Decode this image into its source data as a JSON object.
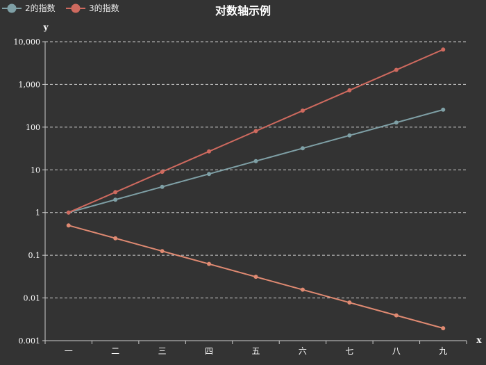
{
  "chart_data": {
    "type": "line",
    "title": "对数轴示例",
    "xlabel": "x",
    "ylabel": "y",
    "categories": [
      "一",
      "二",
      "三",
      "四",
      "五",
      "六",
      "七",
      "八",
      "九"
    ],
    "y_scale": "log",
    "ylim": [
      0.001,
      10000
    ],
    "y_ticks": [
      0.001,
      0.01,
      0.1,
      1,
      10,
      100,
      1000,
      10000
    ],
    "y_tick_labels": [
      "0.001",
      "0.01",
      "0.1",
      "1",
      "10",
      "100",
      "1,000",
      "10,000"
    ],
    "grid": "horizontal-dashed",
    "legend_position": "top-left",
    "series": [
      {
        "name": "2的指数",
        "color": "#7fa0a6",
        "values": [
          1,
          2,
          4,
          8,
          16,
          32,
          64,
          128,
          256
        ]
      },
      {
        "name": "3的指数",
        "color": "#cf6a5f",
        "values": [
          1,
          3,
          9,
          27,
          81,
          243,
          729,
          2187,
          6561
        ]
      },
      {
        "color": "#e08a72",
        "values": [
          0.5,
          0.25,
          0.125,
          0.0625,
          0.03125,
          0.015625,
          0.0078125,
          0.00390625,
          0.001953125
        ]
      }
    ]
  }
}
